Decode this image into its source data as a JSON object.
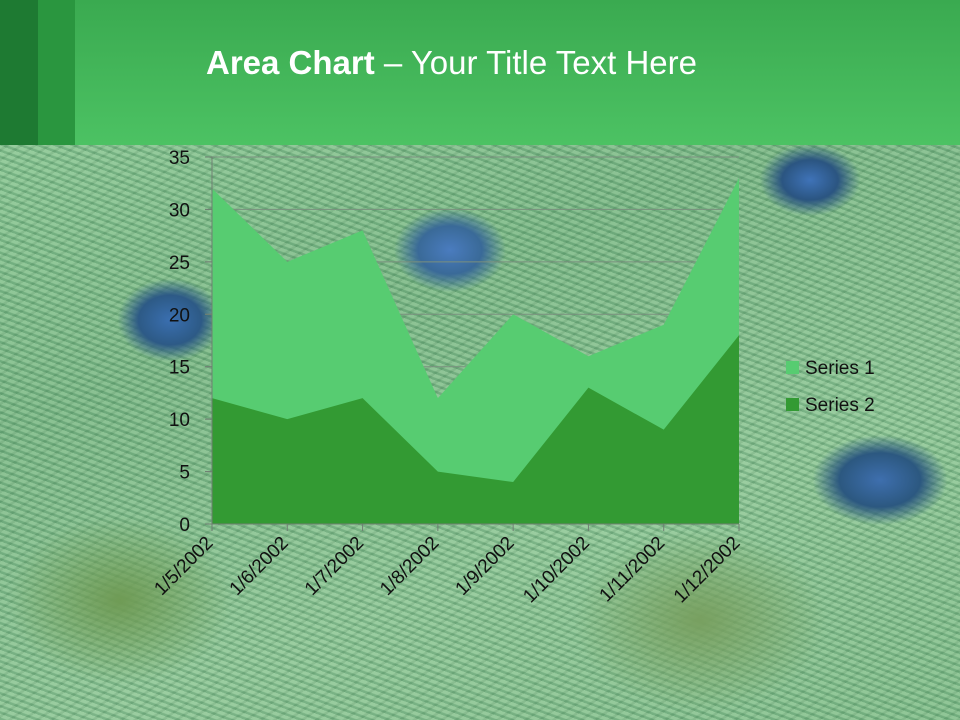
{
  "slide": {
    "title_bold": "Area Chart",
    "title_rest": " – Your Title Text Here"
  },
  "colors": {
    "header": "#4cc263",
    "series1": "#57cc71",
    "series2": "#339a33"
  },
  "chart_data": {
    "type": "area",
    "categories": [
      "1/5/2002",
      "1/6/2002",
      "1/7/2002",
      "1/8/2002",
      "1/9/2002",
      "1/10/2002",
      "1/11/2002",
      "1/12/2002"
    ],
    "series": [
      {
        "name": "Series 1",
        "values": [
          32,
          25,
          28,
          12,
          20,
          16,
          19,
          33
        ]
      },
      {
        "name": "Series 2",
        "values": [
          12,
          10,
          12,
          5,
          4,
          13,
          9,
          18
        ]
      }
    ],
    "yticks": [
      0,
      5,
      10,
      15,
      20,
      25,
      30,
      35
    ],
    "ylim": [
      0,
      35
    ],
    "grid": true,
    "legend": "right"
  }
}
